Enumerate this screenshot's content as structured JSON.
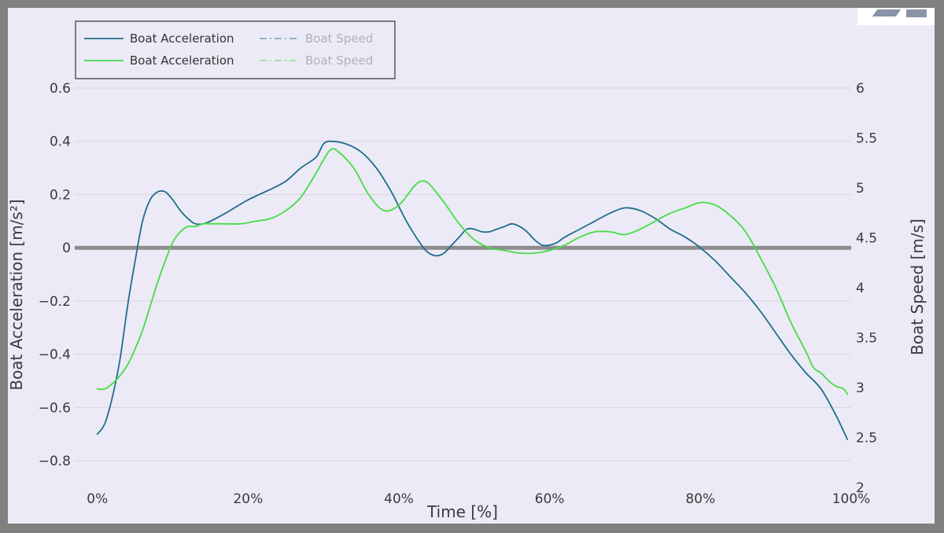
{
  "chart_data": {
    "type": "line",
    "title": "",
    "xlabel": "Time [%]",
    "ylabel": "Boat Acceleration [m/s²]",
    "y2label": "Boat Speed [m/s]",
    "xlim": [
      -3,
      100
    ],
    "ylim": [
      -0.9,
      0.6
    ],
    "y2lim": [
      2,
      6
    ],
    "x_ticks": [
      0,
      20,
      40,
      60,
      80,
      100
    ],
    "x_tick_labels": [
      "0%",
      "20%",
      "40%",
      "60%",
      "80%",
      "100%"
    ],
    "y_ticks": [
      0.6,
      0.4,
      0.2,
      0,
      -0.2,
      -0.4,
      -0.6,
      -0.8
    ],
    "y_tick_labels": [
      "0.6",
      "0.4",
      "0.2",
      "0",
      "−0.2",
      "−0.4",
      "−0.6",
      "−0.8"
    ],
    "y2_ticks": [
      6,
      5.5,
      5,
      4.5,
      4,
      3.5,
      3,
      2.5,
      2
    ],
    "y2_tick_labels": [
      "6",
      "5.5",
      "5",
      "4.5",
      "4",
      "3.5",
      "3",
      "2.5",
      "2"
    ],
    "grid": true,
    "zero_line": true,
    "legend_position": "top-left",
    "legend": [
      {
        "label": "Boat Acceleration",
        "style": "solid",
        "color": "#1f6e8c",
        "faded": false
      },
      {
        "label": "Boat Speed",
        "style": "dashdot",
        "color": "#1f6e8c",
        "faded": true
      },
      {
        "label": "Boat Acceleration",
        "style": "solid",
        "color": "#44dd44",
        "faded": false
      },
      {
        "label": "Boat Speed",
        "style": "dashdot",
        "color": "#44dd44",
        "faded": true
      }
    ],
    "series": [
      {
        "color": "#1f6e8c",
        "axis": "y",
        "x": [
          0,
          1,
          2,
          3,
          4,
          5,
          6,
          7,
          8,
          9,
          10,
          11,
          12,
          13,
          14,
          15,
          17,
          20,
          23,
          25,
          27,
          29,
          30,
          31,
          33,
          35,
          37,
          39,
          41,
          43,
          44,
          45,
          46,
          47,
          48,
          49,
          50,
          51,
          52,
          53,
          54,
          55,
          56,
          57,
          58,
          59,
          60,
          61,
          62,
          64,
          66,
          68,
          70,
          72,
          74,
          76,
          78,
          80,
          82,
          84,
          86,
          88,
          90,
          92,
          94,
          96,
          98,
          99.5
        ],
        "y": [
          -0.7,
          -0.66,
          -0.56,
          -0.42,
          -0.22,
          -0.05,
          0.1,
          0.18,
          0.21,
          0.21,
          0.18,
          0.14,
          0.11,
          0.09,
          0.09,
          0.1,
          0.13,
          0.18,
          0.22,
          0.25,
          0.3,
          0.34,
          0.39,
          0.4,
          0.39,
          0.36,
          0.3,
          0.21,
          0.1,
          0.01,
          -0.02,
          -0.03,
          -0.02,
          0.01,
          0.04,
          0.07,
          0.07,
          0.06,
          0.06,
          0.07,
          0.08,
          0.09,
          0.08,
          0.06,
          0.03,
          0.01,
          0.01,
          0.02,
          0.04,
          0.07,
          0.1,
          0.13,
          0.15,
          0.14,
          0.11,
          0.07,
          0.04,
          0.0,
          -0.05,
          -0.11,
          -0.17,
          -0.24,
          -0.32,
          -0.4,
          -0.47,
          -0.53,
          -0.63,
          -0.72
        ]
      },
      {
        "color": "#44dd44",
        "axis": "y",
        "x": [
          0,
          1,
          2,
          3,
          4,
          5,
          6,
          7,
          8,
          9,
          10,
          11,
          12,
          13,
          14,
          15,
          17,
          19,
          21,
          23,
          25,
          27,
          29,
          30,
          31,
          32,
          34,
          36,
          38,
          40,
          42,
          43,
          44,
          46,
          48,
          50,
          52,
          54,
          56,
          58,
          60,
          62,
          64,
          66,
          68,
          70,
          72,
          74,
          76,
          78,
          80,
          82,
          84,
          86,
          88,
          90,
          92,
          94,
          95,
          96,
          97,
          98,
          99,
          99.5
        ],
        "y": [
          -0.53,
          -0.53,
          -0.51,
          -0.48,
          -0.44,
          -0.38,
          -0.31,
          -0.22,
          -0.13,
          -0.05,
          0.02,
          0.06,
          0.08,
          0.08,
          0.09,
          0.09,
          0.09,
          0.09,
          0.1,
          0.11,
          0.14,
          0.19,
          0.28,
          0.33,
          0.37,
          0.36,
          0.3,
          0.2,
          0.14,
          0.16,
          0.23,
          0.25,
          0.24,
          0.17,
          0.09,
          0.03,
          0.0,
          -0.01,
          -0.02,
          -0.02,
          -0.01,
          0.01,
          0.04,
          0.06,
          0.06,
          0.05,
          0.07,
          0.1,
          0.13,
          0.15,
          0.17,
          0.16,
          0.12,
          0.06,
          -0.04,
          -0.15,
          -0.28,
          -0.39,
          -0.45,
          -0.47,
          -0.5,
          -0.52,
          -0.53,
          -0.55
        ]
      }
    ]
  }
}
